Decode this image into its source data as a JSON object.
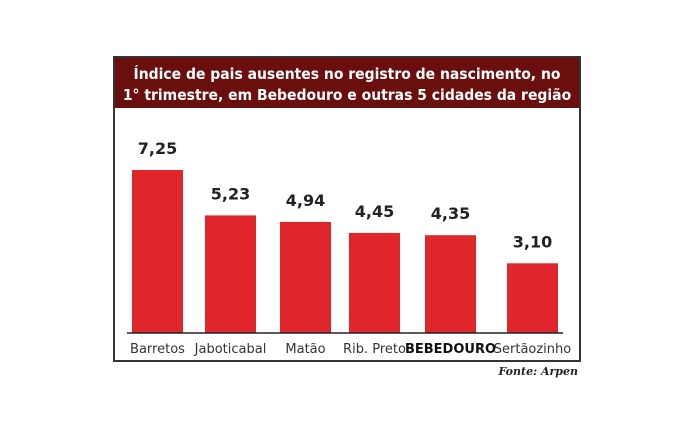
{
  "chart_data": {
    "type": "bar",
    "title_lines": [
      "Índice de pais ausentes no registro de nascimento, no",
      "1° trimestre, em Bebedouro e outras 5 cidades da região"
    ],
    "categories": [
      "Barretos",
      "Jaboticabal",
      "Matão",
      "Rib. Preto",
      "BEBEDOURO",
      "Sertãozinho"
    ],
    "values": [
      7.25,
      5.23,
      4.94,
      4.45,
      4.35,
      3.1
    ],
    "value_labels": [
      "7,25",
      "5,23",
      "4,94",
      "4,45",
      "4,35",
      "3,10"
    ],
    "highlight_category": "BEBEDOURO",
    "ylim": [
      0,
      7.25
    ],
    "grid": false,
    "source": "Fonte: Arpen",
    "colors": {
      "bar": "#e0262b",
      "header": "#6b0e0e",
      "frame": "#333333"
    }
  }
}
